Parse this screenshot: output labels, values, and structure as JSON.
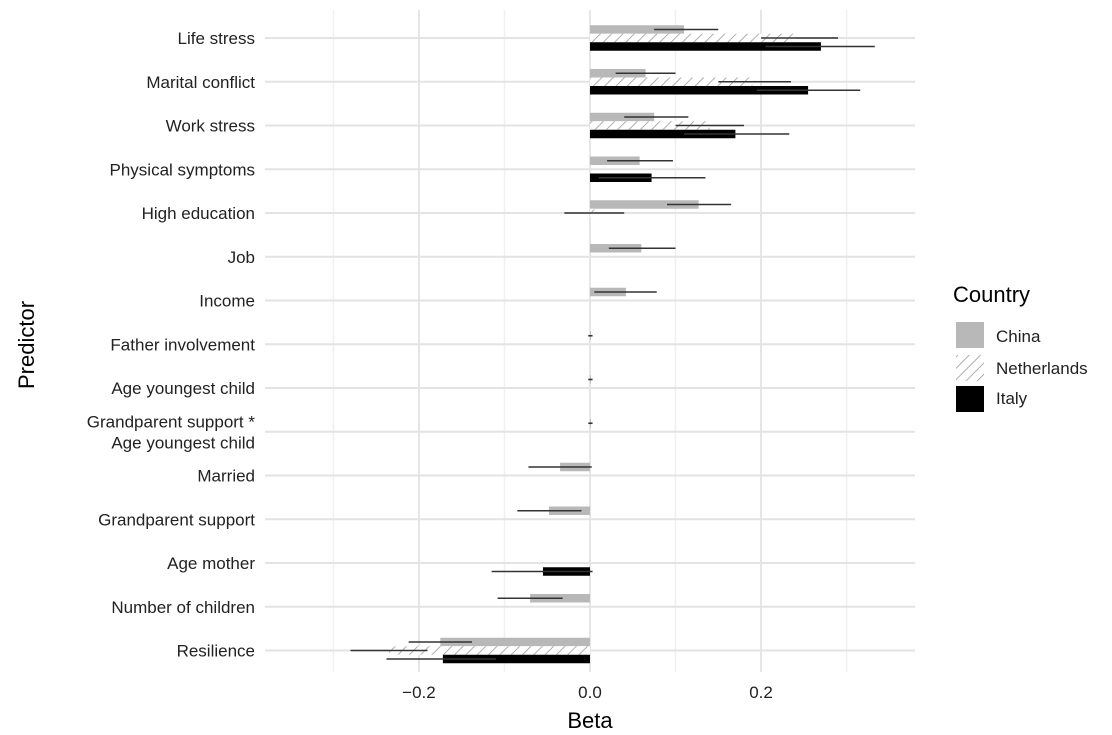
{
  "chart_data": {
    "type": "bar",
    "orientation": "horizontal",
    "xlabel": "Beta",
    "ylabel": "Predictor",
    "xlim": [
      -0.38,
      0.38
    ],
    "xticks": [
      -0.2,
      0.0,
      0.2
    ],
    "xtick_labels": [
      "−0.2",
      "0.0",
      "0.2"
    ],
    "grid": true,
    "legend": {
      "title": "Country",
      "placement": "right",
      "entries": [
        {
          "name": "China",
          "style": "solid-gray"
        },
        {
          "name": "Netherlands",
          "style": "hatched"
        },
        {
          "name": "Italy",
          "style": "solid-black"
        }
      ]
    },
    "categories": [
      [
        "Life stress"
      ],
      [
        "Marital conflict"
      ],
      [
        "Work stress"
      ],
      [
        "Physical symptoms"
      ],
      [
        "High education"
      ],
      [
        "Job"
      ],
      [
        "Income"
      ],
      [
        "Father involvement"
      ],
      [
        "Age youngest child"
      ],
      [
        "Grandparent support *",
        "Age youngest child"
      ],
      [
        "Married"
      ],
      [
        "Grandparent support"
      ],
      [
        "Age mother"
      ],
      [
        "Number of children"
      ],
      [
        "Resilience"
      ]
    ],
    "series": [
      {
        "name": "China",
        "values": [
          0.11,
          0.065,
          0.075,
          0.058,
          0.127,
          0.06,
          0.042,
          0.001,
          0.001,
          0.001,
          -0.035,
          -0.048,
          0.0,
          -0.07,
          -0.175
        ],
        "ci": [
          [
            0.075,
            0.15
          ],
          [
            0.03,
            0.1
          ],
          [
            0.04,
            0.115
          ],
          [
            0.02,
            0.097
          ],
          [
            0.09,
            0.165
          ],
          [
            0.022,
            0.1
          ],
          [
            0.005,
            0.078
          ],
          [
            -0.002,
            0.003
          ],
          [
            -0.002,
            0.003
          ],
          [
            -0.002,
            0.003
          ],
          [
            -0.072,
            0.002
          ],
          [
            -0.085,
            -0.01
          ],
          [
            0.0,
            0.0
          ],
          [
            -0.108,
            -0.032
          ],
          [
            -0.212,
            -0.138
          ]
        ]
      },
      {
        "name": "Netherlands",
        "values": [
          0.24,
          0.19,
          0.14,
          0.0,
          0.005,
          0.0,
          0.0,
          0.0,
          0.0,
          0.0,
          0.0,
          0.0,
          0.0,
          0.0,
          -0.235
        ],
        "ci": [
          [
            0.2,
            0.29
          ],
          [
            0.15,
            0.235
          ],
          [
            0.1,
            0.18
          ],
          [
            0.0,
            0.0
          ],
          [
            -0.03,
            0.04
          ],
          [
            0.0,
            0.0
          ],
          [
            0.0,
            0.0
          ],
          [
            0.0,
            0.0
          ],
          [
            0.0,
            0.0
          ],
          [
            0.0,
            0.0
          ],
          [
            0.0,
            0.0
          ],
          [
            0.0,
            0.0
          ],
          [
            0.0,
            0.0
          ],
          [
            0.0,
            0.0
          ],
          [
            -0.28,
            -0.19
          ]
        ]
      },
      {
        "name": "Italy",
        "values": [
          0.27,
          0.255,
          0.17,
          0.072,
          0.0,
          0.0,
          0.0,
          0.0,
          0.0,
          0.0,
          0.0,
          0.0,
          -0.055,
          0.0,
          -0.172
        ],
        "ci": [
          [
            0.205,
            0.333
          ],
          [
            0.195,
            0.316
          ],
          [
            0.11,
            0.233
          ],
          [
            0.01,
            0.135
          ],
          [
            0.0,
            0.0
          ],
          [
            0.0,
            0.0
          ],
          [
            0.0,
            0.0
          ],
          [
            0.0,
            0.0
          ],
          [
            0.0,
            0.0
          ],
          [
            0.0,
            0.0
          ],
          [
            0.0,
            0.0
          ],
          [
            0.0,
            0.0
          ],
          [
            -0.115,
            0.003
          ],
          [
            0.0,
            0.0
          ],
          [
            -0.238,
            -0.11
          ]
        ]
      }
    ]
  },
  "colors": {
    "china": "#b8b8b8",
    "netherlands_hatch": "#9a9a9a",
    "italy": "#000000",
    "grid_major": "#e3e3e3",
    "grid_minor": "#f0f0f0",
    "errorbar": "#333333"
  }
}
